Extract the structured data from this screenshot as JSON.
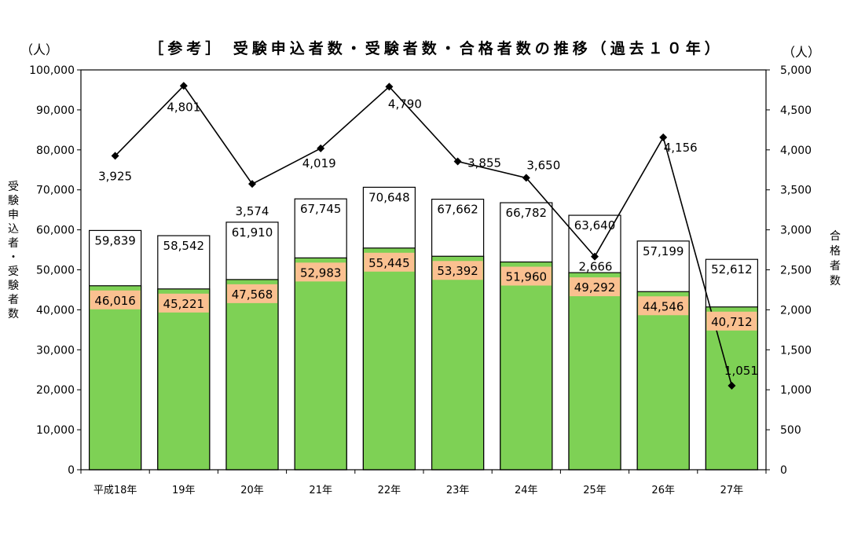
{
  "chart_data": {
    "type": "bar",
    "title": "［参考］ 受験申込者数・受験者数・合格者数の推移（過去１０年）",
    "left_unit": "（人）",
    "right_unit": "（人）",
    "ylabel": "受験申込者・受験者数",
    "y2label": "合格者数",
    "ylim": [
      0,
      100000
    ],
    "y2lim": [
      0,
      5000
    ],
    "yticks": [
      "0",
      "10,000",
      "20,000",
      "30,000",
      "40,000",
      "50,000",
      "60,000",
      "70,000",
      "80,000",
      "90,000",
      "100,000"
    ],
    "y2ticks": [
      "0",
      "500",
      "1,000",
      "1,500",
      "2,000",
      "2,500",
      "3,000",
      "3,500",
      "4,000",
      "4,500",
      "5,000"
    ],
    "categories": [
      "平成18年",
      "19年",
      "20年",
      "21年",
      "22年",
      "23年",
      "24年",
      "25年",
      "26年",
      "27年"
    ],
    "applicants": [
      59839,
      58542,
      61910,
      67745,
      70648,
      67662,
      66782,
      63640,
      57199,
      52612
    ],
    "applicants_labels": [
      "59,839",
      "58,542",
      "61,910",
      "67,745",
      "70,648",
      "67,662",
      "66,782",
      "63,640",
      "57,199",
      "52,612"
    ],
    "examinees": [
      46016,
      45221,
      47568,
      52983,
      55445,
      53392,
      51960,
      49292,
      44546,
      40712
    ],
    "examinees_labels": [
      "46,016",
      "45,221",
      "47,568",
      "52,983",
      "55,445",
      "53,392",
      "51,960",
      "49,292",
      "44,546",
      "40,712"
    ],
    "passers": [
      3925,
      4801,
      3574,
      4019,
      4790,
      3855,
      3650,
      2666,
      4156,
      1051
    ],
    "passers_labels": [
      "3,925",
      "4,801",
      "3,574",
      "4,019",
      "4,790",
      "3,855",
      "3,650",
      "2,666",
      "4,156",
      "1,051"
    ],
    "colors": {
      "applicants_bar": "#ffffff",
      "examinees_bar": "#7ed155",
      "examinees_label_bg": "#fac090",
      "line": "#000000"
    },
    "grid": false
  }
}
